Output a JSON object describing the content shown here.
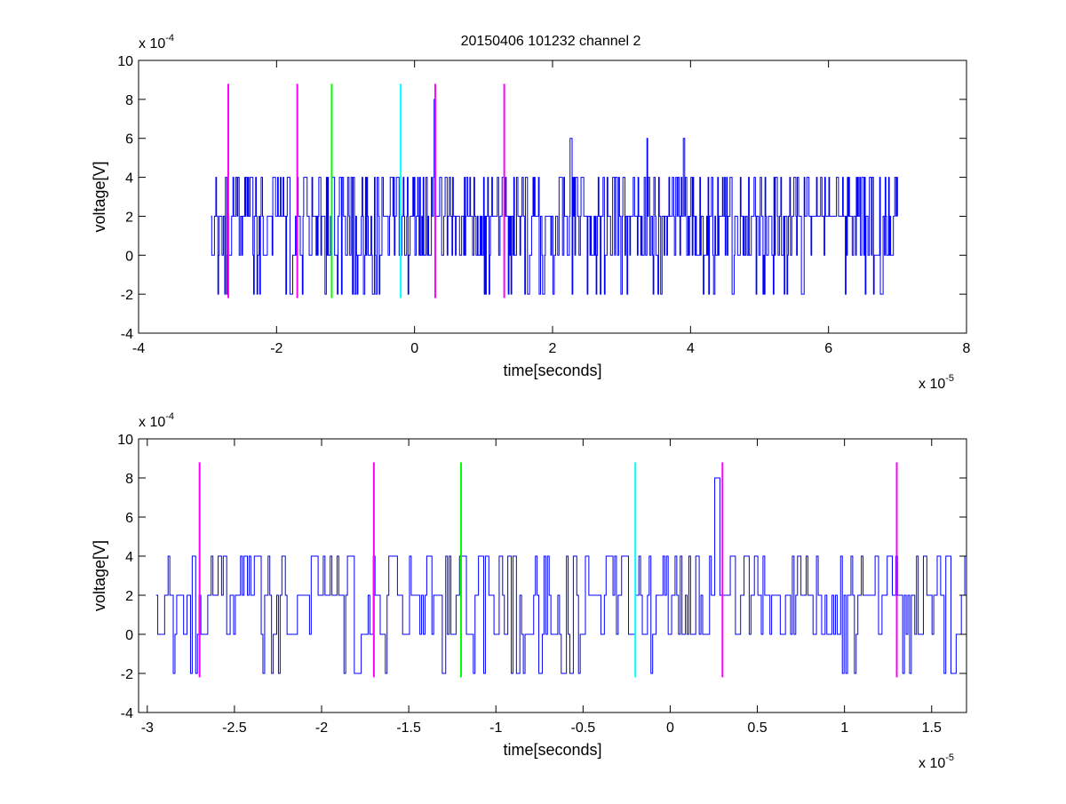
{
  "figure_title": "20150406 101232 channel 2",
  "colors": {
    "signal": "#0000ff",
    "magenta": "#ff00ff",
    "green": "#00ff00",
    "cyan": "#00ffff",
    "axis": "#000000"
  },
  "chart_data": [
    {
      "type": "line",
      "title": "20150406 101232 channel 2",
      "xlabel": "time[seconds]",
      "ylabel": "voltage[V]",
      "x_exponent_label": "x 10",
      "x_exponent_power": "-5",
      "y_exponent_label": "x 10",
      "y_exponent_power": "-4",
      "xlim": [
        -4e-05,
        8e-05
      ],
      "ylim": [
        -0.0004,
        0.001
      ],
      "xticks": [
        -4e-05,
        -2e-05,
        0,
        2e-05,
        4e-05,
        6e-05,
        8e-05
      ],
      "xtick_labels": [
        "-4",
        "-2",
        "0",
        "2",
        "4",
        "6",
        "8"
      ],
      "yticks": [
        -0.0004,
        -0.0002,
        0,
        0.0002,
        0.0004,
        0.0006,
        0.0008,
        0.001
      ],
      "ytick_labels": [
        "-4",
        "-2",
        "0",
        "2",
        "4",
        "6",
        "8",
        "10"
      ],
      "grid": false,
      "signal_x_range": [
        -2.95e-05,
        7e-05
      ],
      "markers": [
        {
          "x": -2.7e-05,
          "color": "magenta",
          "ymin": -0.00022,
          "ymax": 0.00088
        },
        {
          "x": -1.7e-05,
          "color": "magenta",
          "ymin": -0.00022,
          "ymax": 0.00088
        },
        {
          "x": -1.2e-05,
          "color": "green",
          "ymin": -0.00022,
          "ymax": 0.00088
        },
        {
          "x": -2e-06,
          "color": "cyan",
          "ymin": -0.00022,
          "ymax": 0.00088
        },
        {
          "x": 3e-06,
          "color": "magenta",
          "ymin": -0.00022,
          "ymax": 0.00088
        },
        {
          "x": 1.3e-05,
          "color": "magenta",
          "ymin": -0.00022,
          "ymax": 0.00088
        }
      ],
      "spikes": [
        {
          "x": 2.8e-06,
          "y": 0.0008
        },
        {
          "x": 2.25e-05,
          "y": 0.0006
        },
        {
          "x": 3.37e-05,
          "y": 0.0006
        },
        {
          "x": 3.9e-05,
          "y": 0.0006
        }
      ]
    },
    {
      "type": "line",
      "title": "",
      "xlabel": "time[seconds]",
      "ylabel": "voltage[V]",
      "x_exponent_label": "x 10",
      "x_exponent_power": "-5",
      "y_exponent_label": "x 10",
      "y_exponent_power": "-4",
      "xlim": [
        -3.05e-05,
        1.7e-05
      ],
      "ylim": [
        -0.0004,
        0.001
      ],
      "xticks": [
        -3e-05,
        -2.5e-05,
        -2e-05,
        -1.5e-05,
        -1e-05,
        -5e-06,
        0,
        5e-06,
        1e-05,
        1.5e-05
      ],
      "xtick_labels": [
        "-3",
        "-2.5",
        "-2",
        "-1.5",
        "-1",
        "-0.5",
        "0",
        "0.5",
        "1",
        "1.5"
      ],
      "yticks": [
        -0.0004,
        -0.0002,
        0,
        0.0002,
        0.0004,
        0.0006,
        0.0008,
        0.001
      ],
      "ytick_labels": [
        "-4",
        "-2",
        "0",
        "2",
        "4",
        "6",
        "8",
        "10"
      ],
      "grid": false,
      "signal_x_range": [
        -2.95e-05,
        1.7e-05
      ],
      "markers": [
        {
          "x": -2.7e-05,
          "color": "magenta",
          "ymin": -0.00022,
          "ymax": 0.00088
        },
        {
          "x": -1.7e-05,
          "color": "magenta",
          "ymin": -0.00022,
          "ymax": 0.00088
        },
        {
          "x": -1.2e-05,
          "color": "green",
          "ymin": -0.00022,
          "ymax": 0.00088
        },
        {
          "x": -2e-06,
          "color": "cyan",
          "ymin": -0.00022,
          "ymax": 0.00088
        },
        {
          "x": 3e-06,
          "color": "magenta",
          "ymin": -0.00022,
          "ymax": 0.00088
        },
        {
          "x": 1.3e-05,
          "color": "magenta",
          "ymin": -0.00022,
          "ymax": 0.00088
        }
      ],
      "spikes": [
        {
          "x": 2.6e-06,
          "y": 0.0008
        }
      ]
    }
  ]
}
